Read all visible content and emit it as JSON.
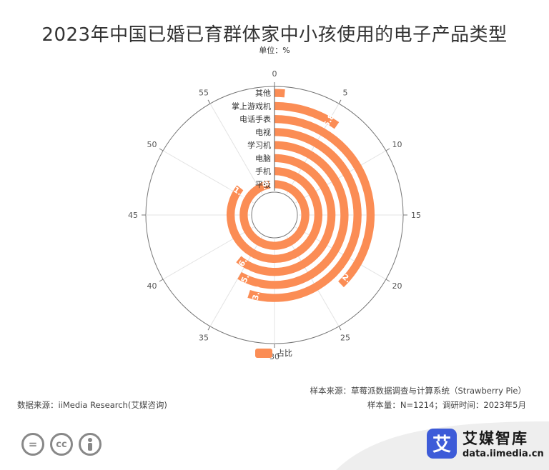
{
  "title": "2023年中国已婚已育群体家中小孩使用的电子产品类型",
  "unit": "单位：%",
  "legend": {
    "label": "占比",
    "color": "#fb8d55"
  },
  "source_sample": "样本来源：草莓派数据调查与计算系统（Strawberry Pie）",
  "source_meta": "样本量：N=1214；调研时间：2023年5月",
  "source_data": "数据来源：iiMedia Research(艾媒咨询)",
  "brand": {
    "logo_char": "艾",
    "name": "艾媒智库",
    "url": "data.iimedia.cn"
  },
  "license_icons": [
    "=",
    "cc",
    "person"
  ],
  "chart_data": {
    "type": "bar",
    "polar": true,
    "categories": [
      "平板",
      "手机",
      "电脑",
      "学习机",
      "电视",
      "电话手表",
      "掌上游戏机",
      "其他"
    ],
    "values": [
      58.4,
      51.4,
      36.5,
      35.0,
      33.0,
      22.7,
      5.8,
      0.8
    ],
    "angle_ticks": [
      "0",
      "5",
      "10",
      "15",
      "20",
      "25",
      "30",
      "35",
      "40",
      "45",
      "50",
      "55"
    ],
    "angle_max": 60,
    "series_name": "占比",
    "color": "#fb8d55"
  }
}
